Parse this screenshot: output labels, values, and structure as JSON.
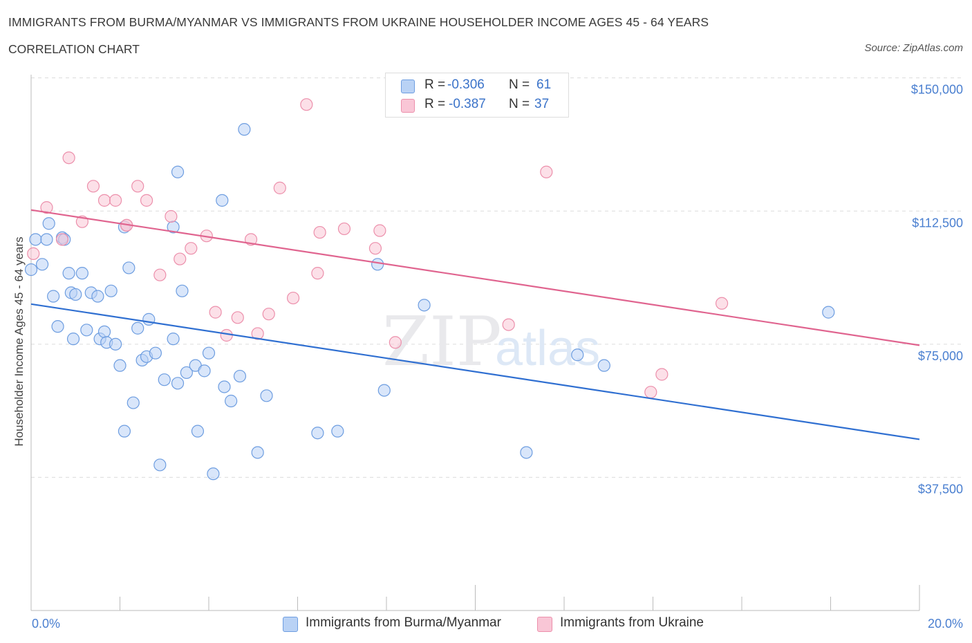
{
  "title": "IMMIGRANTS FROM BURMA/MYANMAR VS IMMIGRANTS FROM UKRAINE HOUSEHOLDER INCOME AGES 45 - 64 YEARS",
  "subtitle": "CORRELATION CHART",
  "source": "Source: ZipAtlas.com",
  "watermark": {
    "zip": "ZIP",
    "atlas": "atlas"
  },
  "colors": {
    "burma_fill": "#b9d2f5",
    "burma_stroke": "#6d9de0",
    "burma_line": "#2f6fd1",
    "ukraine_fill": "#f9c6d6",
    "ukraine_stroke": "#ec8fab",
    "ukraine_line": "#e0648f",
    "tick_text": "#4a7fd0"
  },
  "legend": {
    "rows": [
      {
        "r_label": "R = ",
        "r_value": "-0.306",
        "n_label": "N = ",
        "n_value": "61"
      },
      {
        "r_label": "R = ",
        "r_value": "-0.387",
        "n_label": "N = ",
        "n_value": "37"
      }
    ]
  },
  "bottom_legend": {
    "burma": "Immigrants from Burma/Myanmar",
    "ukraine": "Immigrants from Ukraine"
  },
  "chart_data": {
    "type": "scatter",
    "title": "IMMIGRANTS FROM BURMA/MYANMAR VS IMMIGRANTS FROM UKRAINE HOUSEHOLDER INCOME AGES 45 - 64 YEARS",
    "subtitle": "CORRELATION CHART",
    "xlabel": "",
    "ylabel": "Householder Income Ages 45 - 64 years",
    "xlim": [
      0,
      20
    ],
    "ylim": [
      0,
      155000
    ],
    "x_unit": "%",
    "x_tick_labels": [
      {
        "value": 0,
        "label": "0.0%"
      },
      {
        "value": 20,
        "label": "20.0%"
      }
    ],
    "y_ticks": [
      {
        "value": 150000,
        "label": "$150,000"
      },
      {
        "value": 112500,
        "label": "$112,500"
      },
      {
        "value": 75000,
        "label": "$75,000"
      },
      {
        "value": 37500,
        "label": "$37,500"
      }
    ],
    "grid": true,
    "legend_position": "top-center",
    "series": [
      {
        "name": "Immigrants from Burma/Myanmar",
        "color": "#6d9de0",
        "r": -0.306,
        "n": 61,
        "trend": {
          "x": [
            0,
            20
          ],
          "y": [
            86300,
            48200
          ]
        },
        "points": [
          {
            "x": 0.0,
            "y": 96000
          },
          {
            "x": 0.1,
            "y": 104500
          },
          {
            "x": 0.25,
            "y": 97500
          },
          {
            "x": 0.35,
            "y": 104500
          },
          {
            "x": 0.4,
            "y": 109000
          },
          {
            "x": 0.5,
            "y": 88500
          },
          {
            "x": 0.6,
            "y": 80000
          },
          {
            "x": 0.7,
            "y": 105000
          },
          {
            "x": 0.75,
            "y": 104500
          },
          {
            "x": 0.85,
            "y": 95000
          },
          {
            "x": 0.9,
            "y": 89500
          },
          {
            "x": 0.95,
            "y": 76500
          },
          {
            "x": 1.0,
            "y": 89000
          },
          {
            "x": 1.15,
            "y": 95000
          },
          {
            "x": 1.25,
            "y": 79000
          },
          {
            "x": 1.35,
            "y": 89500
          },
          {
            "x": 1.5,
            "y": 88500
          },
          {
            "x": 1.55,
            "y": 76500
          },
          {
            "x": 1.65,
            "y": 78500
          },
          {
            "x": 1.7,
            "y": 75500
          },
          {
            "x": 1.8,
            "y": 90000
          },
          {
            "x": 1.9,
            "y": 75000
          },
          {
            "x": 2.0,
            "y": 69000
          },
          {
            "x": 2.1,
            "y": 50500
          },
          {
            "x": 2.1,
            "y": 108000
          },
          {
            "x": 2.2,
            "y": 96500
          },
          {
            "x": 2.3,
            "y": 58500
          },
          {
            "x": 2.4,
            "y": 79500
          },
          {
            "x": 2.5,
            "y": 70500
          },
          {
            "x": 2.6,
            "y": 71500
          },
          {
            "x": 2.65,
            "y": 82000
          },
          {
            "x": 2.8,
            "y": 72500
          },
          {
            "x": 2.9,
            "y": 41000
          },
          {
            "x": 3.0,
            "y": 65000
          },
          {
            "x": 3.2,
            "y": 76500
          },
          {
            "x": 3.3,
            "y": 64000
          },
          {
            "x": 3.4,
            "y": 90000
          },
          {
            "x": 3.5,
            "y": 67000
          },
          {
            "x": 3.7,
            "y": 69000
          },
          {
            "x": 3.75,
            "y": 50500
          },
          {
            "x": 3.9,
            "y": 67500
          },
          {
            "x": 4.0,
            "y": 72500
          },
          {
            "x": 4.1,
            "y": 38500
          },
          {
            "x": 4.3,
            "y": 115500
          },
          {
            "x": 4.35,
            "y": 63000
          },
          {
            "x": 4.5,
            "y": 59000
          },
          {
            "x": 4.7,
            "y": 66000
          },
          {
            "x": 4.8,
            "y": 135500
          },
          {
            "x": 5.1,
            "y": 44500
          },
          {
            "x": 5.3,
            "y": 60500
          },
          {
            "x": 6.45,
            "y": 50000
          },
          {
            "x": 6.9,
            "y": 50500
          },
          {
            "x": 7.8,
            "y": 97500
          },
          {
            "x": 7.95,
            "y": 62000
          },
          {
            "x": 8.85,
            "y": 86000
          },
          {
            "x": 11.15,
            "y": 44500
          },
          {
            "x": 12.3,
            "y": 72000
          },
          {
            "x": 12.9,
            "y": 69000
          },
          {
            "x": 17.95,
            "y": 84000
          },
          {
            "x": 3.3,
            "y": 123500
          },
          {
            "x": 3.2,
            "y": 108000
          }
        ]
      },
      {
        "name": "Immigrants from Ukraine",
        "color": "#ec8fab",
        "r": -0.387,
        "n": 37,
        "trend": {
          "x": [
            0,
            20
          ],
          "y": [
            112800,
            74700
          ]
        },
        "points": [
          {
            "x": 0.05,
            "y": 100500
          },
          {
            "x": 0.35,
            "y": 113500
          },
          {
            "x": 0.7,
            "y": 104500
          },
          {
            "x": 0.85,
            "y": 127500
          },
          {
            "x": 1.15,
            "y": 109500
          },
          {
            "x": 1.4,
            "y": 119500
          },
          {
            "x": 1.65,
            "y": 115500
          },
          {
            "x": 1.9,
            "y": 115500
          },
          {
            "x": 2.15,
            "y": 108500
          },
          {
            "x": 2.4,
            "y": 119500
          },
          {
            "x": 2.6,
            "y": 115500
          },
          {
            "x": 2.9,
            "y": 94500
          },
          {
            "x": 3.15,
            "y": 111000
          },
          {
            "x": 3.35,
            "y": 99000
          },
          {
            "x": 3.6,
            "y": 102000
          },
          {
            "x": 3.95,
            "y": 105500
          },
          {
            "x": 4.15,
            "y": 84000
          },
          {
            "x": 4.4,
            "y": 77500
          },
          {
            "x": 4.65,
            "y": 82500
          },
          {
            "x": 4.95,
            "y": 104500
          },
          {
            "x": 5.1,
            "y": 78000
          },
          {
            "x": 5.35,
            "y": 83500
          },
          {
            "x": 5.6,
            "y": 119000
          },
          {
            "x": 5.9,
            "y": 88000
          },
          {
            "x": 6.2,
            "y": 142500
          },
          {
            "x": 6.45,
            "y": 95000
          },
          {
            "x": 6.5,
            "y": 106500
          },
          {
            "x": 7.05,
            "y": 107500
          },
          {
            "x": 7.75,
            "y": 102000
          },
          {
            "x": 7.85,
            "y": 107000
          },
          {
            "x": 8.2,
            "y": 75500
          },
          {
            "x": 10.75,
            "y": 80500
          },
          {
            "x": 11.6,
            "y": 123500
          },
          {
            "x": 13.95,
            "y": 61500
          },
          {
            "x": 14.2,
            "y": 66500
          },
          {
            "x": 15.55,
            "y": 86500
          },
          {
            "x": 2.15,
            "y": 108500
          }
        ]
      }
    ]
  }
}
